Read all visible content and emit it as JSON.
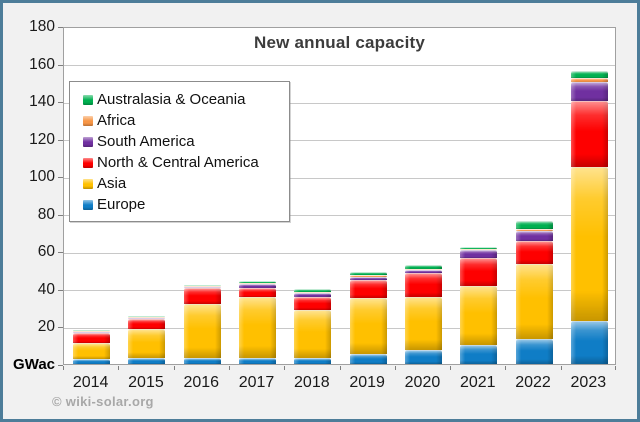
{
  "watermark": "© wiki-solar.org",
  "frame": {
    "border_color": "#4d7d99",
    "background": "#f1f1f1",
    "plot_background": "#ffffff",
    "gridline_color": "#c8c8c8"
  },
  "chart_data": {
    "type": "bar",
    "stacked": true,
    "title": "New annual capacity",
    "ylabel": "GWac",
    "ylim": [
      0,
      180
    ],
    "ytick_step": 20,
    "grid": "horizontal",
    "legend_position": "upper-left-inside",
    "legend_order": "reverse-of-stack",
    "categories": [
      "2014",
      "2015",
      "2016",
      "2017",
      "2018",
      "2019",
      "2020",
      "2021",
      "2022",
      "2023"
    ],
    "series": [
      {
        "name": "Europe",
        "color": "#0f7dc6",
        "values": [
          2.5,
          3.0,
          3.0,
          3.0,
          3.3,
          5.5,
          7.5,
          10.0,
          13.5,
          23.0
        ]
      },
      {
        "name": "Asia",
        "color": "#ffc000",
        "values": [
          8.5,
          15.5,
          29.0,
          32.5,
          25.5,
          29.5,
          28.0,
          31.5,
          39.5,
          82.0
        ]
      },
      {
        "name": "North & Central America",
        "color": "#fe0000",
        "values": [
          5.5,
          5.5,
          8.5,
          5.0,
          7.0,
          9.5,
          13.0,
          15.0,
          12.5,
          35.0
        ]
      },
      {
        "name": "South America",
        "color": "#7030a0",
        "values": [
          0.2,
          0.3,
          0.5,
          2.3,
          2.0,
          1.8,
          1.5,
          4.0,
          5.5,
          10.0
        ]
      },
      {
        "name": "Africa",
        "color": "#f79646",
        "values": [
          0.3,
          0.5,
          0.3,
          0.4,
          0.8,
          0.9,
          0.8,
          0.5,
          1.0,
          2.5
        ]
      },
      {
        "name": "Australasia & Oceania",
        "color": "#00b050",
        "values": [
          0.5,
          0.7,
          0.7,
          0.8,
          1.4,
          1.8,
          1.7,
          1.5,
          4.0,
          3.5
        ]
      }
    ]
  }
}
